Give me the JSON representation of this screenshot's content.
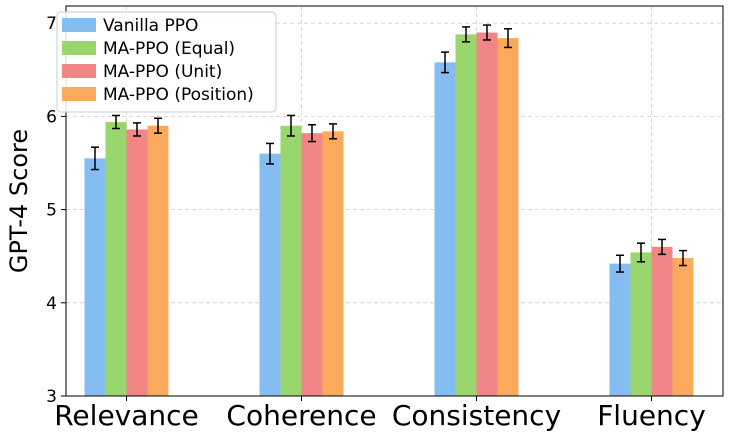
{
  "chart_data": {
    "type": "bar",
    "title": "",
    "xlabel": "",
    "ylabel": "GPT-4 Score",
    "ylim": [
      3,
      7.2
    ],
    "yticks": [
      "3",
      "4",
      "5",
      "6",
      "7"
    ],
    "grid": true,
    "legend_position": "top-left",
    "categories": [
      "Relevance",
      "Coherence",
      "Consistency",
      "Fluency"
    ],
    "series": [
      {
        "name": "Vanilla PPO",
        "color": "#85bdf2",
        "values": [
          5.55,
          5.6,
          6.58,
          4.42
        ],
        "errors": [
          0.12,
          0.11,
          0.11,
          0.09
        ]
      },
      {
        "name": "MA-PPO (Equal)",
        "color": "#9ad66e",
        "values": [
          5.94,
          5.9,
          6.88,
          4.54
        ],
        "errors": [
          0.07,
          0.11,
          0.08,
          0.1
        ]
      },
      {
        "name": "MA-PPO (Unit)",
        "color": "#f28585",
        "values": [
          5.86,
          5.82,
          6.9,
          4.6
        ],
        "errors": [
          0.07,
          0.09,
          0.08,
          0.08
        ]
      },
      {
        "name": "MA-PPO (Position)",
        "color": "#fba95c",
        "values": [
          5.9,
          5.84,
          6.84,
          4.48
        ],
        "errors": [
          0.08,
          0.08,
          0.1,
          0.08
        ]
      }
    ]
  }
}
